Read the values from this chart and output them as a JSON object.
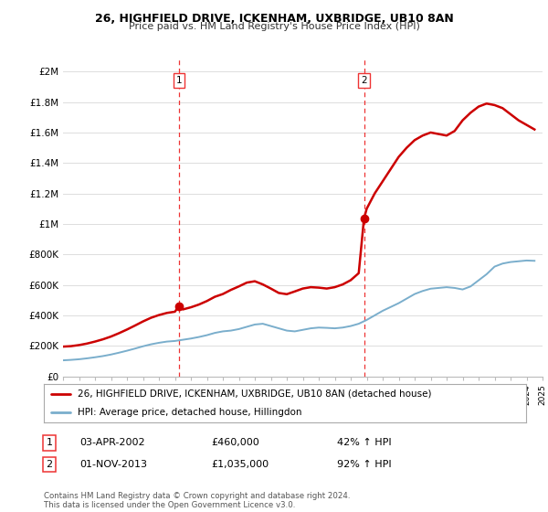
{
  "title": "26, HIGHFIELD DRIVE, ICKENHAM, UXBRIDGE, UB10 8AN",
  "subtitle": "Price paid vs. HM Land Registry's House Price Index (HPI)",
  "legend_line1": "26, HIGHFIELD DRIVE, ICKENHAM, UXBRIDGE, UB10 8AN (detached house)",
  "legend_line2": "HPI: Average price, detached house, Hillingdon",
  "annotation1_label": "1",
  "annotation1_date": "03-APR-2002",
  "annotation1_price": "£460,000",
  "annotation1_hpi": "42% ↑ HPI",
  "annotation2_label": "2",
  "annotation2_date": "01-NOV-2013",
  "annotation2_price": "£1,035,000",
  "annotation2_hpi": "92% ↑ HPI",
  "footer": "Contains HM Land Registry data © Crown copyright and database right 2024.\nThis data is licensed under the Open Government Licence v3.0.",
  "red_color": "#cc0000",
  "blue_color": "#7aaecc",
  "vline_color": "#ee3333",
  "grid_color": "#dddddd",
  "background_color": "#ffffff",
  "ylim": [
    0,
    2100000
  ],
  "yticks": [
    0,
    200000,
    400000,
    600000,
    800000,
    1000000,
    1200000,
    1400000,
    1600000,
    1800000,
    2000000
  ],
  "ytick_labels": [
    "£0",
    "£200K",
    "£400K",
    "£600K",
    "£800K",
    "£1M",
    "£1.2M",
    "£1.4M",
    "£1.6M",
    "£1.8M",
    "£2M"
  ],
  "sale1_x": 2002.25,
  "sale1_y": 460000,
  "sale2_x": 2013.83,
  "sale2_y": 1035000,
  "xmin": 1995,
  "xmax": 2025,
  "hpi_x": [
    1995,
    1995.5,
    1996,
    1996.5,
    1997,
    1997.5,
    1998,
    1998.5,
    1999,
    1999.5,
    2000,
    2000.5,
    2001,
    2001.5,
    2002,
    2002.5,
    2003,
    2003.5,
    2004,
    2004.5,
    2005,
    2005.5,
    2006,
    2006.5,
    2007,
    2007.5,
    2008,
    2008.5,
    2009,
    2009.5,
    2010,
    2010.5,
    2011,
    2011.5,
    2012,
    2012.5,
    2013,
    2013.5,
    2014,
    2014.5,
    2015,
    2015.5,
    2016,
    2016.5,
    2017,
    2017.5,
    2018,
    2018.5,
    2019,
    2019.5,
    2020,
    2020.5,
    2021,
    2021.5,
    2022,
    2022.5,
    2023,
    2023.5,
    2024,
    2024.5
  ],
  "hpi_y": [
    105000,
    108000,
    112000,
    118000,
    125000,
    133000,
    143000,
    155000,
    168000,
    182000,
    197000,
    210000,
    220000,
    228000,
    232000,
    240000,
    248000,
    258000,
    270000,
    285000,
    295000,
    300000,
    310000,
    325000,
    340000,
    345000,
    330000,
    315000,
    300000,
    295000,
    305000,
    315000,
    320000,
    318000,
    315000,
    320000,
    330000,
    345000,
    370000,
    400000,
    430000,
    455000,
    480000,
    510000,
    540000,
    560000,
    575000,
    580000,
    585000,
    580000,
    570000,
    590000,
    630000,
    670000,
    720000,
    740000,
    750000,
    755000,
    760000,
    758000
  ],
  "red_x": [
    1995,
    1995.5,
    1996,
    1996.5,
    1997,
    1997.5,
    1998,
    1998.5,
    1999,
    1999.5,
    2000,
    2000.5,
    2001,
    2001.5,
    2002,
    2002.25,
    2002.5,
    2003,
    2003.5,
    2004,
    2004.5,
    2005,
    2005.5,
    2006,
    2006.5,
    2007,
    2007.5,
    2008,
    2008.5,
    2009,
    2009.5,
    2010,
    2010.5,
    2011,
    2011.5,
    2012,
    2012.5,
    2013,
    2013.5,
    2013.83,
    2014,
    2014.5,
    2015,
    2015.5,
    2016,
    2016.5,
    2017,
    2017.5,
    2018,
    2018.5,
    2019,
    2019.5,
    2020,
    2020.5,
    2021,
    2021.5,
    2022,
    2022.5,
    2023,
    2023.5,
    2024,
    2024.5
  ],
  "red_y": [
    195000,
    198000,
    205000,
    215000,
    228000,
    243000,
    261000,
    283000,
    307000,
    333000,
    360000,
    384000,
    402000,
    416000,
    424000,
    460000,
    439000,
    453000,
    471000,
    494000,
    522000,
    540000,
    567000,
    590000,
    615000,
    624000,
    603000,
    576000,
    547000,
    539000,
    557000,
    576000,
    585000,
    582000,
    576000,
    585000,
    603000,
    631000,
    677000,
    1035000,
    1100000,
    1200000,
    1280000,
    1360000,
    1440000,
    1500000,
    1550000,
    1580000,
    1600000,
    1590000,
    1580000,
    1610000,
    1680000,
    1730000,
    1770000,
    1790000,
    1780000,
    1760000,
    1720000,
    1680000,
    1650000,
    1620000
  ]
}
